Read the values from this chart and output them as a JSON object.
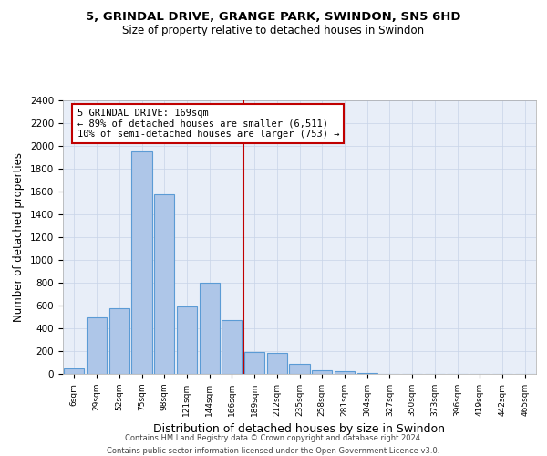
{
  "title_line1": "5, GRINDAL DRIVE, GRANGE PARK, SWINDON, SN5 6HD",
  "title_line2": "Size of property relative to detached houses in Swindon",
  "xlabel": "Distribution of detached houses by size in Swindon",
  "ylabel": "Number of detached properties",
  "categories": [
    "6sqm",
    "29sqm",
    "52sqm",
    "75sqm",
    "98sqm",
    "121sqm",
    "144sqm",
    "166sqm",
    "189sqm",
    "212sqm",
    "235sqm",
    "258sqm",
    "281sqm",
    "304sqm",
    "327sqm",
    "350sqm",
    "373sqm",
    "396sqm",
    "419sqm",
    "442sqm",
    "465sqm"
  ],
  "values": [
    50,
    500,
    580,
    1950,
    1580,
    590,
    800,
    475,
    195,
    185,
    85,
    30,
    25,
    10,
    0,
    0,
    0,
    0,
    0,
    0,
    0
  ],
  "bar_color": "#aec6e8",
  "bar_edge_color": "#5b9bd5",
  "vline_x": 7.5,
  "vline_color": "#c00000",
  "annotation_text": "5 GRINDAL DRIVE: 169sqm\n← 89% of detached houses are smaller (6,511)\n10% of semi-detached houses are larger (753) →",
  "annotation_box_color": "#c00000",
  "ylim": [
    0,
    2400
  ],
  "yticks": [
    0,
    200,
    400,
    600,
    800,
    1000,
    1200,
    1400,
    1600,
    1800,
    2000,
    2200,
    2400
  ],
  "grid_color": "#c8d4e8",
  "background_color": "#e8eef8",
  "footer_line1": "Contains HM Land Registry data © Crown copyright and database right 2024.",
  "footer_line2": "Contains public sector information licensed under the Open Government Licence v3.0."
}
